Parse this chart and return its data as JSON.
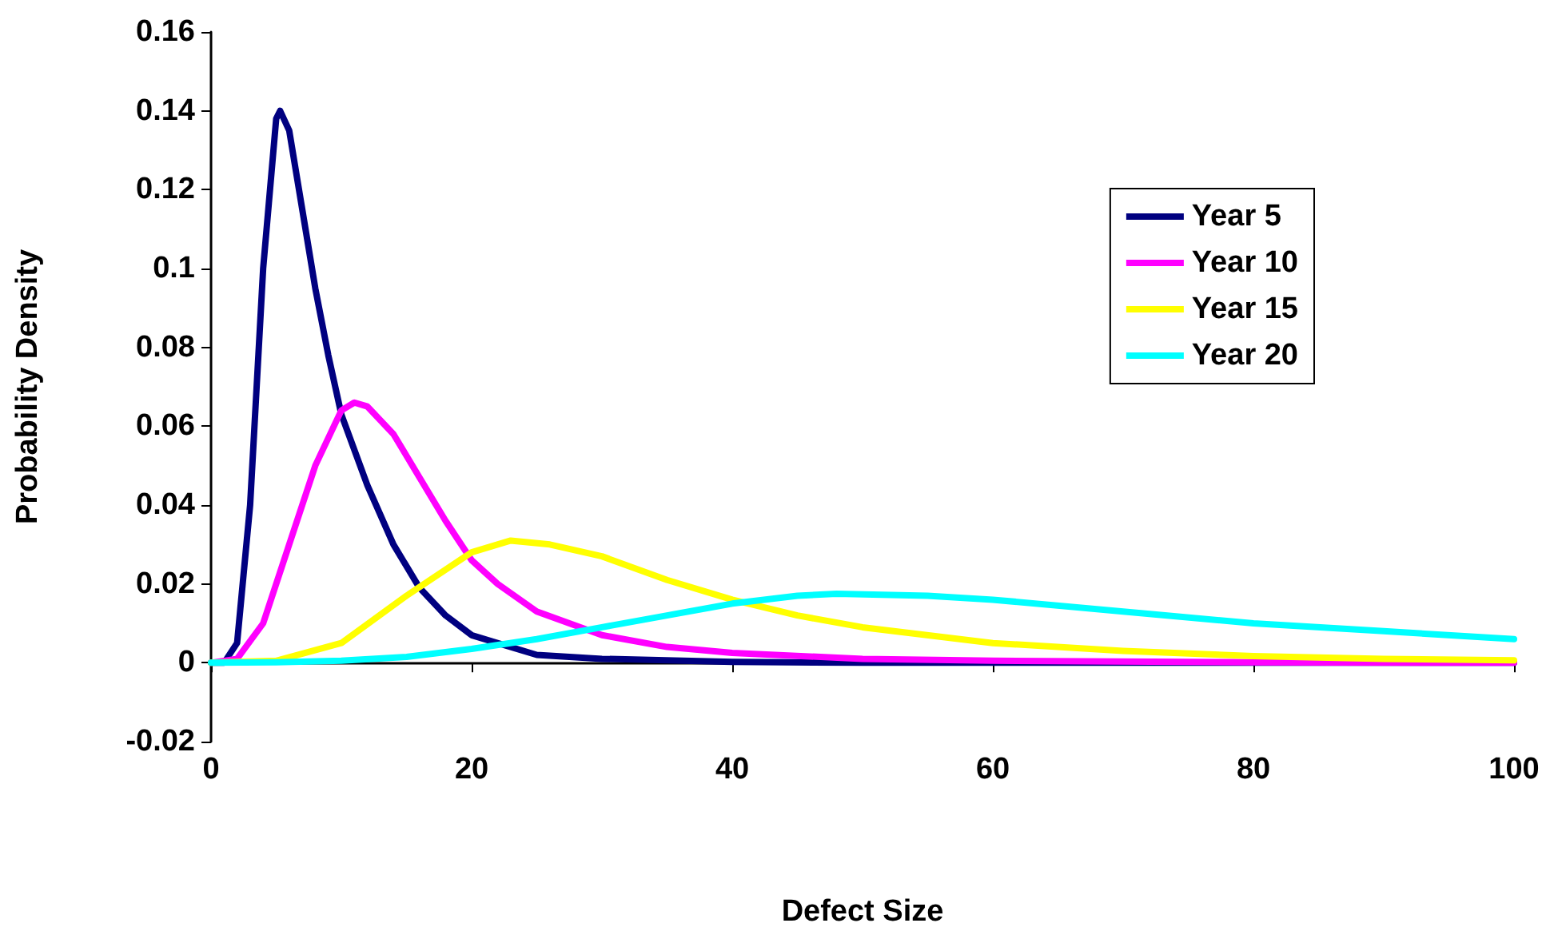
{
  "chart_data": {
    "type": "line",
    "xlabel": "Defect Size",
    "ylabel": "Probability Density",
    "xlim": [
      0,
      100
    ],
    "xticks": [
      0,
      20,
      40,
      60,
      80,
      100
    ],
    "ylim": [
      -0.02,
      0.16
    ],
    "yticks": [
      -0.02,
      0,
      0.02,
      0.04,
      0.06,
      0.08,
      0.1,
      0.12,
      0.14,
      0.16
    ],
    "legend": "top right",
    "marker": "none",
    "line_style": "solid",
    "series": [
      {
        "name": "Year 5",
        "color": "#000080",
        "x": [
          0,
          1,
          2,
          3,
          4,
          5,
          5.3,
          6,
          7,
          8,
          9,
          10,
          12,
          14,
          16,
          18,
          20,
          25,
          30,
          40,
          50,
          100
        ],
        "values": [
          0,
          0,
          0.005,
          0.04,
          0.1,
          0.138,
          0.14,
          0.135,
          0.115,
          0.095,
          0.078,
          0.063,
          0.045,
          0.03,
          0.019,
          0.012,
          0.007,
          0.002,
          0.001,
          0.0002,
          0,
          0
        ]
      },
      {
        "name": "Year 10",
        "color": "#ff00ff",
        "x": [
          0,
          2,
          4,
          6,
          8,
          10,
          11,
          12,
          14,
          16,
          18,
          20,
          22,
          25,
          30,
          35,
          40,
          50,
          60,
          80,
          100
        ],
        "values": [
          0,
          0.001,
          0.01,
          0.03,
          0.05,
          0.064,
          0.066,
          0.065,
          0.058,
          0.047,
          0.036,
          0.026,
          0.02,
          0.013,
          0.007,
          0.004,
          0.0025,
          0.001,
          0.0005,
          0.0001,
          0
        ]
      },
      {
        "name": "Year 15",
        "color": "#ffff00",
        "x": [
          0,
          5,
          10,
          15,
          20,
          23,
          26,
          30,
          35,
          40,
          45,
          50,
          60,
          70,
          80,
          90,
          100
        ],
        "values": [
          0,
          0.0005,
          0.005,
          0.017,
          0.028,
          0.031,
          0.03,
          0.027,
          0.021,
          0.016,
          0.012,
          0.009,
          0.005,
          0.003,
          0.0017,
          0.001,
          0.0006
        ]
      },
      {
        "name": "Year 20",
        "color": "#00ffff",
        "x": [
          0,
          5,
          10,
          15,
          20,
          25,
          30,
          35,
          40,
          45,
          48,
          55,
          60,
          70,
          80,
          90,
          100
        ],
        "values": [
          0,
          0.0001,
          0.0005,
          0.0015,
          0.0035,
          0.006,
          0.009,
          0.012,
          0.015,
          0.017,
          0.0175,
          0.017,
          0.016,
          0.013,
          0.01,
          0.008,
          0.006
        ]
      }
    ]
  }
}
